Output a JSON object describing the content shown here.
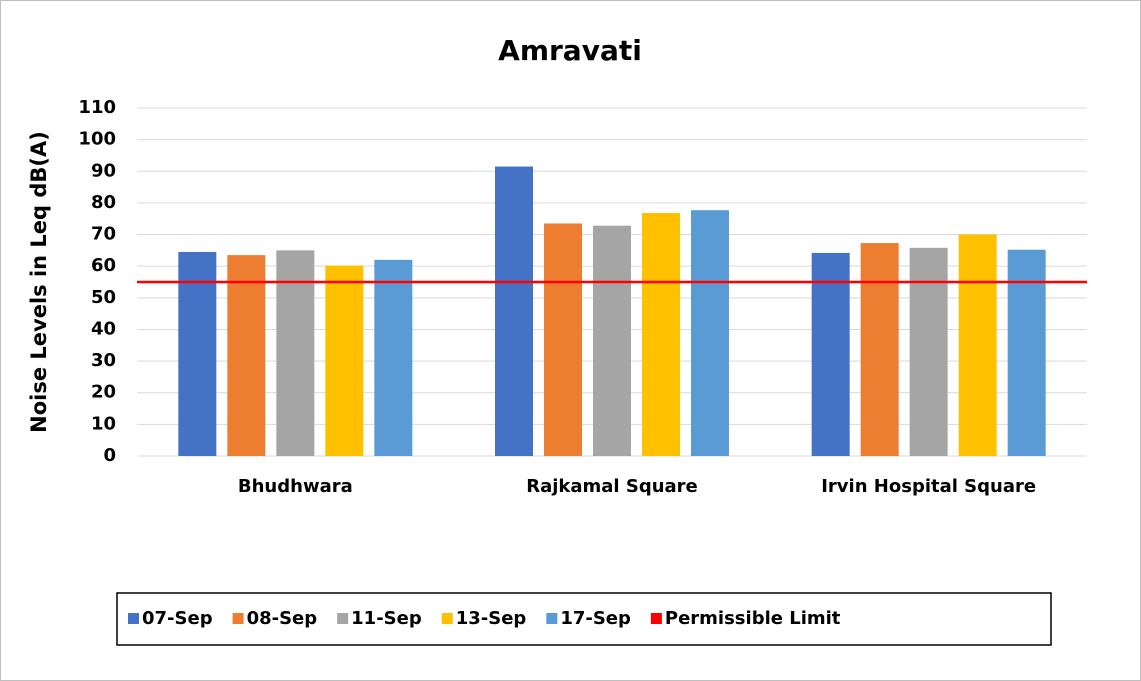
{
  "chart_data": {
    "type": "bar",
    "title": "Amravati",
    "y_label": "Noise Levels in Leq dB(A)",
    "categories": [
      "Bhudhwara",
      "Rajkamal Square",
      "Irvin Hospital Square"
    ],
    "series": [
      {
        "name": "07-Sep",
        "color": "#4472c4",
        "values": [
          64.5,
          91.5,
          64.2
        ]
      },
      {
        "name": "08-Sep",
        "color": "#ed7d31",
        "values": [
          63.5,
          73.5,
          67.3
        ]
      },
      {
        "name": "11-Sep",
        "color": "#a5a5a5",
        "values": [
          65,
          72.8,
          65.8
        ]
      },
      {
        "name": "13-Sep",
        "color": "#ffc000",
        "values": [
          60.2,
          76.8,
          70
        ]
      },
      {
        "name": "17-Sep",
        "color": "#5b9bd5",
        "values": [
          62,
          77.7,
          65.2
        ]
      }
    ],
    "limit": {
      "name": "Permissible Limit",
      "value": 55,
      "color": "#ff0000"
    },
    "ylim": [
      0,
      110
    ],
    "yticks": [
      0,
      10,
      20,
      30,
      40,
      50,
      60,
      70,
      80,
      90,
      100,
      110
    ],
    "grid": true
  }
}
